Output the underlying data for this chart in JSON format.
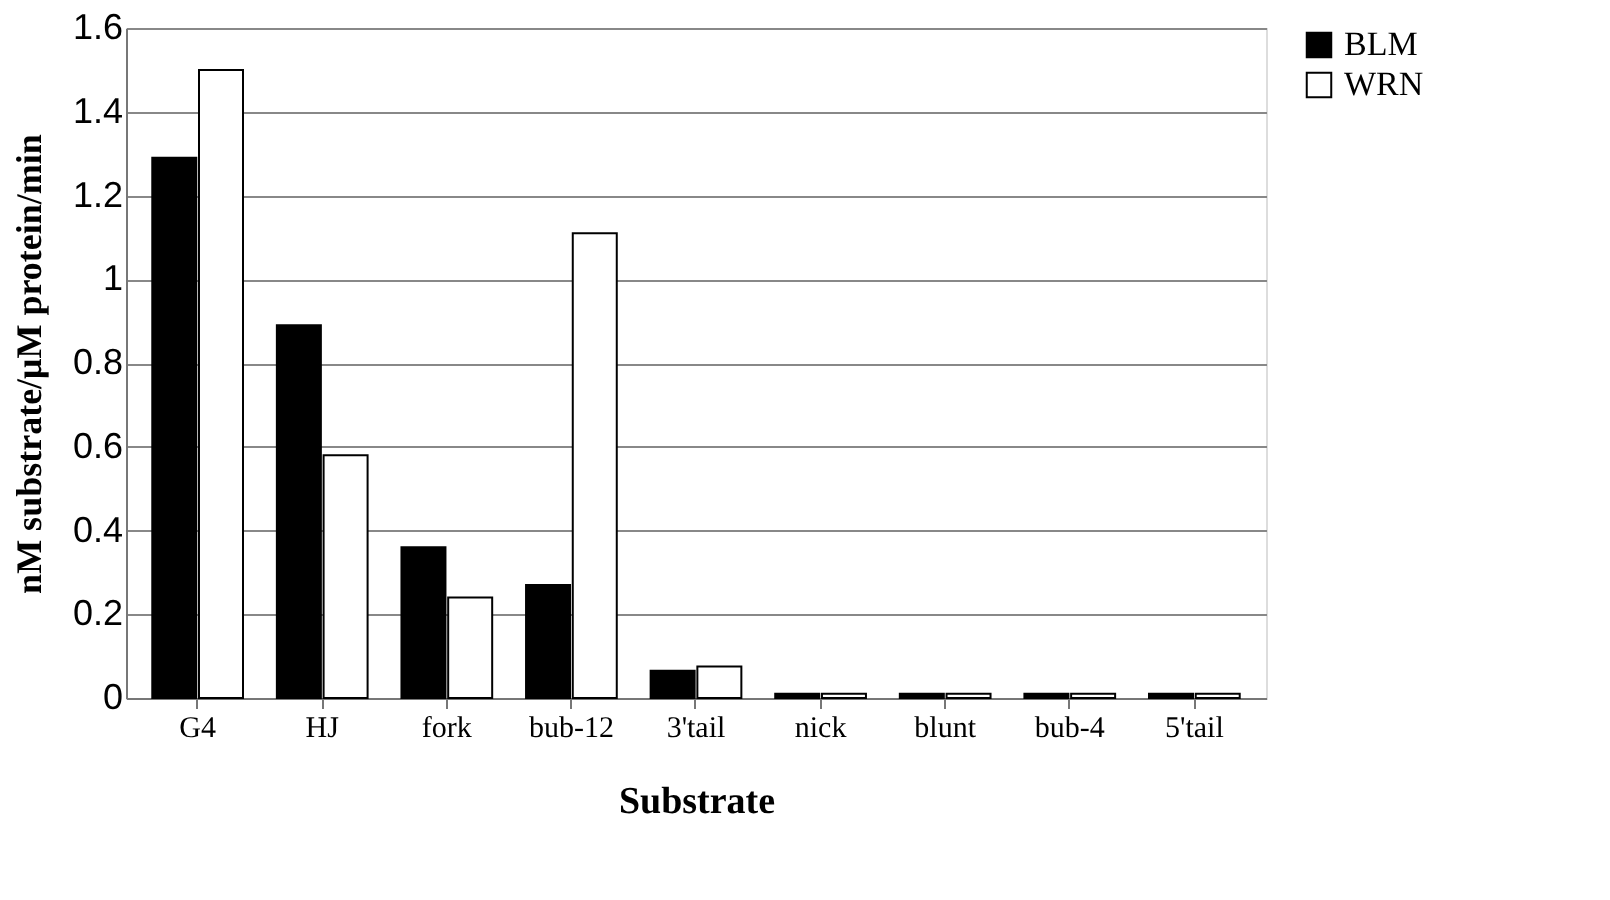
{
  "chart_data": {
    "type": "bar",
    "xlabel": "Substrate",
    "ylabel": "nM substrate/μM protein/min",
    "categories": [
      "G4",
      "HJ",
      "fork",
      "bub-12",
      "3'tail",
      "nick",
      "blunt",
      "bub-4",
      "5'tail"
    ],
    "series": [
      {
        "name": "BLM",
        "color": "#000000",
        "values": [
          1.29,
          0.89,
          0.36,
          0.27,
          0.065,
          0.01,
          0.01,
          0.01,
          0.01
        ]
      },
      {
        "name": "WRN",
        "color": "#ffffff",
        "values": [
          1.5,
          0.58,
          0.24,
          1.11,
          0.075,
          0.01,
          0.01,
          0.01,
          0.01
        ]
      }
    ],
    "ylim": [
      0,
      1.6
    ],
    "yticks": [
      0,
      0.2,
      0.4,
      0.6,
      0.8,
      1,
      1.2,
      1.4,
      1.6
    ],
    "grid": "y",
    "legend": "right"
  }
}
